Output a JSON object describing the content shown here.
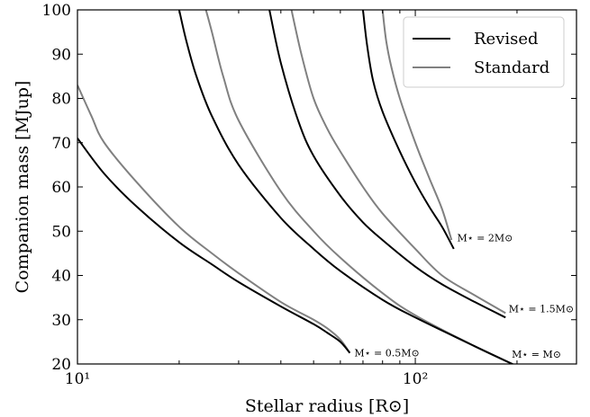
{
  "chart_data": {
    "type": "line",
    "xlabel": "Stellar radius [R⊙]",
    "ylabel": "Companion mass [MJup]",
    "xscale": "log",
    "xlim": [
      10,
      300
    ],
    "ylim": [
      20,
      100
    ],
    "x_ticks": [
      {
        "value": 10,
        "label": "10¹"
      },
      {
        "value": 100,
        "label": "10²"
      }
    ],
    "y_ticks": [
      20,
      30,
      40,
      50,
      60,
      70,
      80,
      90,
      100
    ],
    "grid": false,
    "legend": {
      "placement": "top-right",
      "entries": [
        {
          "label": "Revised",
          "color": "#000000"
        },
        {
          "label": "Standard",
          "color": "#808080"
        }
      ]
    },
    "series": [
      {
        "group": "M⋆ = 0.5M⊙",
        "style": "Revised",
        "color": "#000000",
        "points": [
          [
            10,
            71
          ],
          [
            12,
            63
          ],
          [
            15,
            55.5
          ],
          [
            20,
            47.5
          ],
          [
            25,
            42.5
          ],
          [
            30,
            38.5
          ],
          [
            40,
            33
          ],
          [
            50,
            29
          ],
          [
            55,
            27
          ],
          [
            60,
            25
          ],
          [
            64,
            22.5
          ]
        ]
      },
      {
        "group": "M⋆ = 0.5M⊙",
        "style": "Standard",
        "color": "#808080",
        "points": [
          [
            10,
            83
          ],
          [
            11,
            76
          ],
          [
            12,
            70
          ],
          [
            15,
            61
          ],
          [
            20,
            51
          ],
          [
            25,
            45
          ],
          [
            30,
            40.5
          ],
          [
            40,
            34
          ],
          [
            50,
            30
          ],
          [
            55,
            28
          ],
          [
            60,
            25.5
          ],
          [
            64,
            22.5
          ]
        ]
      },
      {
        "group": "M⋆ = M⊙",
        "style": "Revised",
        "color": "#000000",
        "points": [
          [
            20,
            100
          ],
          [
            21,
            93
          ],
          [
            22.5,
            85
          ],
          [
            25,
            76
          ],
          [
            30,
            65
          ],
          [
            40,
            53
          ],
          [
            50,
            46
          ],
          [
            60,
            41
          ],
          [
            80,
            34.5
          ],
          [
            100,
            30.5
          ],
          [
            150,
            24
          ],
          [
            200,
            19.5
          ]
        ]
      },
      {
        "group": "M⋆ = M⊙",
        "style": "Standard",
        "color": "#808080",
        "points": [
          [
            24,
            100
          ],
          [
            25,
            95
          ],
          [
            27,
            85
          ],
          [
            30,
            75
          ],
          [
            40,
            59
          ],
          [
            50,
            50
          ],
          [
            60,
            44
          ],
          [
            80,
            36
          ],
          [
            100,
            31
          ],
          [
            150,
            24
          ],
          [
            200,
            19.5
          ]
        ]
      },
      {
        "group": "M⋆ = 1.5M⊙",
        "style": "Revised",
        "color": "#000000",
        "points": [
          [
            37,
            100
          ],
          [
            40,
            88
          ],
          [
            45,
            75
          ],
          [
            50,
            67
          ],
          [
            60,
            58
          ],
          [
            70,
            52
          ],
          [
            80,
            48
          ],
          [
            100,
            42
          ],
          [
            120,
            38
          ],
          [
            150,
            34
          ],
          [
            185,
            30.5
          ]
        ]
      },
      {
        "group": "M⋆ = 1.5M⊙",
        "style": "Standard",
        "color": "#808080",
        "points": [
          [
            43,
            100
          ],
          [
            46,
            90
          ],
          [
            50,
            80
          ],
          [
            55,
            73
          ],
          [
            60,
            68
          ],
          [
            70,
            60
          ],
          [
            80,
            54
          ],
          [
            100,
            46
          ],
          [
            120,
            40
          ],
          [
            150,
            35.5
          ],
          [
            185,
            31.5
          ]
        ]
      },
      {
        "group": "M⋆ = 2M⊙",
        "style": "Revised",
        "color": "#000000",
        "points": [
          [
            70,
            100
          ],
          [
            72,
            92
          ],
          [
            75,
            84
          ],
          [
            80,
            77
          ],
          [
            90,
            68
          ],
          [
            100,
            61
          ],
          [
            110,
            55.5
          ],
          [
            120,
            51
          ],
          [
            130,
            46
          ]
        ]
      },
      {
        "group": "M⋆ = 2M⊙",
        "style": "Standard",
        "color": "#808080",
        "points": [
          [
            80,
            100
          ],
          [
            82,
            93
          ],
          [
            85,
            87
          ],
          [
            90,
            80
          ],
          [
            100,
            70
          ],
          [
            110,
            62
          ],
          [
            120,
            55
          ],
          [
            128,
            48
          ]
        ]
      }
    ],
    "annotations": [
      {
        "text": "M⋆ = 0.5M⊙",
        "x": 66,
        "y": 22.5
      },
      {
        "text": "M⋆ = M⊙",
        "x": 193,
        "y": 22.2
      },
      {
        "text": "M⋆ = 1.5M⊙",
        "x": 189,
        "y": 32.5
      },
      {
        "text": "M⋆ = 2M⊙",
        "x": 133,
        "y": 48.5
      }
    ]
  }
}
